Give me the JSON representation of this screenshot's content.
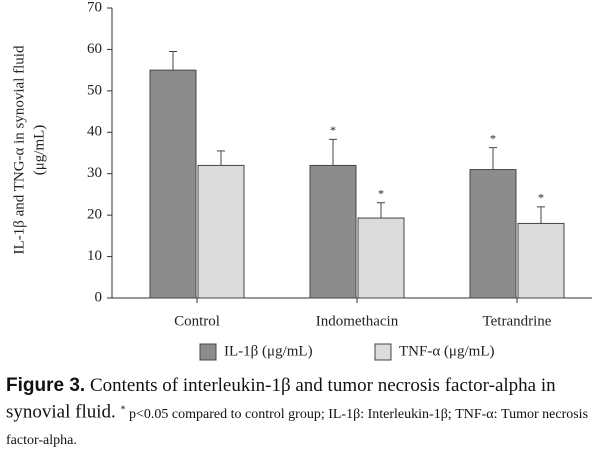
{
  "chart_data": {
    "type": "bar",
    "y_label": [
      "IL-1β and TNG-α in synovial fluid",
      "(μg/mL)"
    ],
    "categories": [
      "Control",
      "Indomethacin",
      "Tetrandrine"
    ],
    "series": [
      {
        "name": "IL-1β (μg/mL)",
        "color": "#8c8c8c",
        "values": [
          55,
          32,
          31
        ],
        "errors": [
          4.5,
          6.3,
          5.3
        ],
        "significance": [
          null,
          "*",
          "*"
        ]
      },
      {
        "name": "TNF-α (μg/mL)",
        "color": "#dcdcdc",
        "values": [
          32,
          19.3,
          18
        ],
        "errors": [
          3.5,
          3.7,
          4
        ],
        "significance": [
          null,
          "*",
          "*"
        ]
      }
    ],
    "ylim": [
      0,
      70
    ],
    "yticks": [
      0,
      10,
      20,
      30,
      40,
      50,
      60,
      70
    ],
    "grid": false,
    "legend": "bottom"
  },
  "caption": {
    "label": "Figure 3.",
    "title": "Contents of interleukin-1β and tumor necrosis factor-alpha in synovial fluid.",
    "note_mark": "*",
    "note": "p<0.05 compared to control group; IL-1β: Interleukin-1β; TNF-α: Tumor necrosis factor-alpha."
  }
}
